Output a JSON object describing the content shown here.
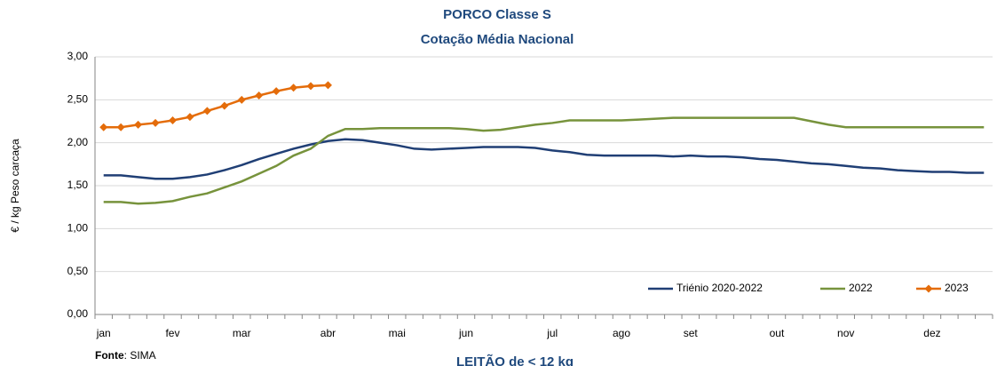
{
  "chart_data": {
    "type": "line",
    "title": "PORCO Classe S",
    "subtitle": "Cotação Média Nacional",
    "y_label": "€ / kg Peso carcaça",
    "source_label": "Fonte",
    "source": ": SIMA",
    "next_title": "LEITÃO de < 12 kg",
    "categories": [
      "jan",
      null,
      null,
      null,
      "fev",
      null,
      null,
      null,
      "mar",
      null,
      null,
      null,
      null,
      "abr",
      null,
      null,
      null,
      "mai",
      null,
      null,
      null,
      "jun",
      null,
      null,
      null,
      null,
      "jul",
      null,
      null,
      null,
      "ago",
      null,
      null,
      null,
      "set",
      null,
      null,
      null,
      null,
      "out",
      null,
      null,
      null,
      "nov",
      null,
      null,
      null,
      null,
      "dez",
      null,
      null,
      null
    ],
    "series": [
      {
        "name": "Triénio 2020-2022",
        "color": "#203f75",
        "marker": "none",
        "values": [
          1.62,
          1.62,
          1.6,
          1.58,
          1.58,
          1.6,
          1.63,
          1.68,
          1.74,
          1.81,
          1.87,
          1.93,
          1.98,
          2.02,
          2.04,
          2.03,
          2.0,
          1.97,
          1.93,
          1.92,
          1.93,
          1.94,
          1.95,
          1.95,
          1.95,
          1.94,
          1.91,
          1.89,
          1.86,
          1.85,
          1.85,
          1.85,
          1.85,
          1.84,
          1.85,
          1.84,
          1.84,
          1.83,
          1.81,
          1.8,
          1.78,
          1.76,
          1.75,
          1.73,
          1.71,
          1.7,
          1.68,
          1.67,
          1.66,
          1.66,
          1.65,
          1.65
        ]
      },
      {
        "name": "2022",
        "color": "#77933c",
        "marker": "none",
        "values": [
          1.31,
          1.31,
          1.29,
          1.3,
          1.32,
          1.37,
          1.41,
          1.48,
          1.55,
          1.64,
          1.73,
          1.85,
          1.93,
          2.08,
          2.16,
          2.16,
          2.17,
          2.17,
          2.17,
          2.17,
          2.17,
          2.16,
          2.14,
          2.15,
          2.18,
          2.21,
          2.23,
          2.26,
          2.26,
          2.26,
          2.26,
          2.27,
          2.28,
          2.29,
          2.29,
          2.29,
          2.29,
          2.29,
          2.29,
          2.29,
          2.29,
          2.25,
          2.21,
          2.18,
          2.18,
          2.18,
          2.18,
          2.18,
          2.18,
          2.18,
          2.18,
          2.18
        ]
      },
      {
        "name": "2023",
        "color": "#e46c0a",
        "marker": "diamond",
        "values": [
          2.18,
          2.18,
          2.21,
          2.23,
          2.26,
          2.3,
          2.37,
          2.43,
          2.5,
          2.55,
          2.6,
          2.64,
          2.66,
          2.67,
          null,
          null,
          null,
          null,
          null,
          null,
          null,
          null,
          null,
          null,
          null,
          null,
          null,
          null,
          null,
          null,
          null,
          null,
          null,
          null,
          null,
          null,
          null,
          null,
          null,
          null,
          null,
          null,
          null,
          null,
          null,
          null,
          null,
          null,
          null,
          null,
          null,
          null
        ]
      }
    ],
    "ylim": [
      0,
      3
    ],
    "yticks": [
      {
        "value": 0,
        "label": "0,00"
      },
      {
        "value": 0.5,
        "label": "0,50"
      },
      {
        "value": 1,
        "label": "1,00"
      },
      {
        "value": 1.5,
        "label": "1,50"
      },
      {
        "value": 2,
        "label": "2,00"
      },
      {
        "value": 2.5,
        "label": "2,50"
      },
      {
        "value": 3,
        "label": "3,00"
      }
    ],
    "grid": true,
    "legend": "bottom-right"
  }
}
